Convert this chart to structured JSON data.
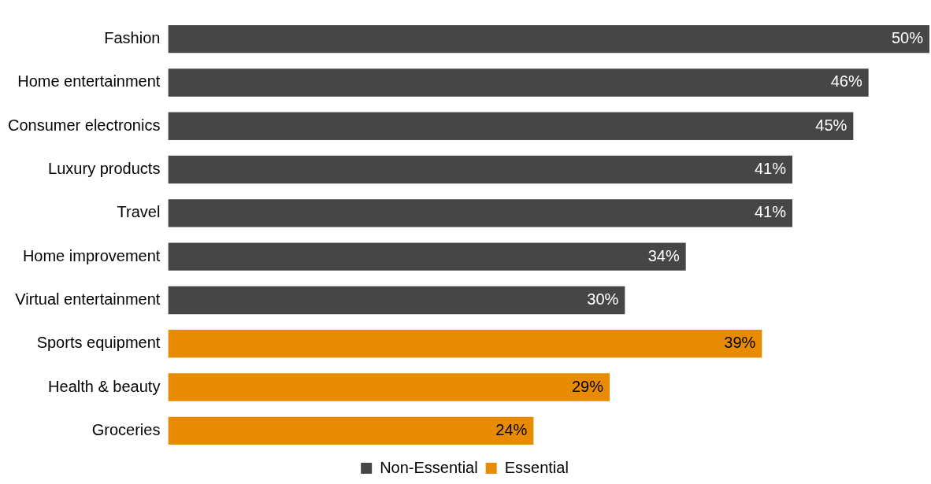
{
  "chart_data": {
    "type": "bar",
    "orientation": "horizontal",
    "legend": "bottom",
    "tick_labels": "y",
    "categories": [
      "Fashion",
      "Home entertainment",
      "Consumer electronics",
      "Luxury products",
      "Travel",
      "Home improvement",
      "Virtual entertainment",
      "Sports equipment",
      "Health & beauty",
      "Groceries"
    ],
    "series": [
      {
        "name": "Non-Essential",
        "color": "#464646",
        "values": [
          50,
          46,
          45,
          41,
          41,
          34,
          30,
          null,
          null,
          null
        ],
        "value_labels": [
          "50%",
          "46%",
          "45%",
          "41%",
          "41%",
          "34%",
          "30%",
          null,
          null,
          null
        ]
      },
      {
        "name": "Essential",
        "color": "#e98b00",
        "values": [
          null,
          null,
          null,
          null,
          null,
          null,
          null,
          39,
          29,
          24
        ],
        "value_labels": [
          null,
          null,
          null,
          null,
          null,
          null,
          null,
          "39%",
          "29%",
          "24%"
        ]
      }
    ]
  }
}
